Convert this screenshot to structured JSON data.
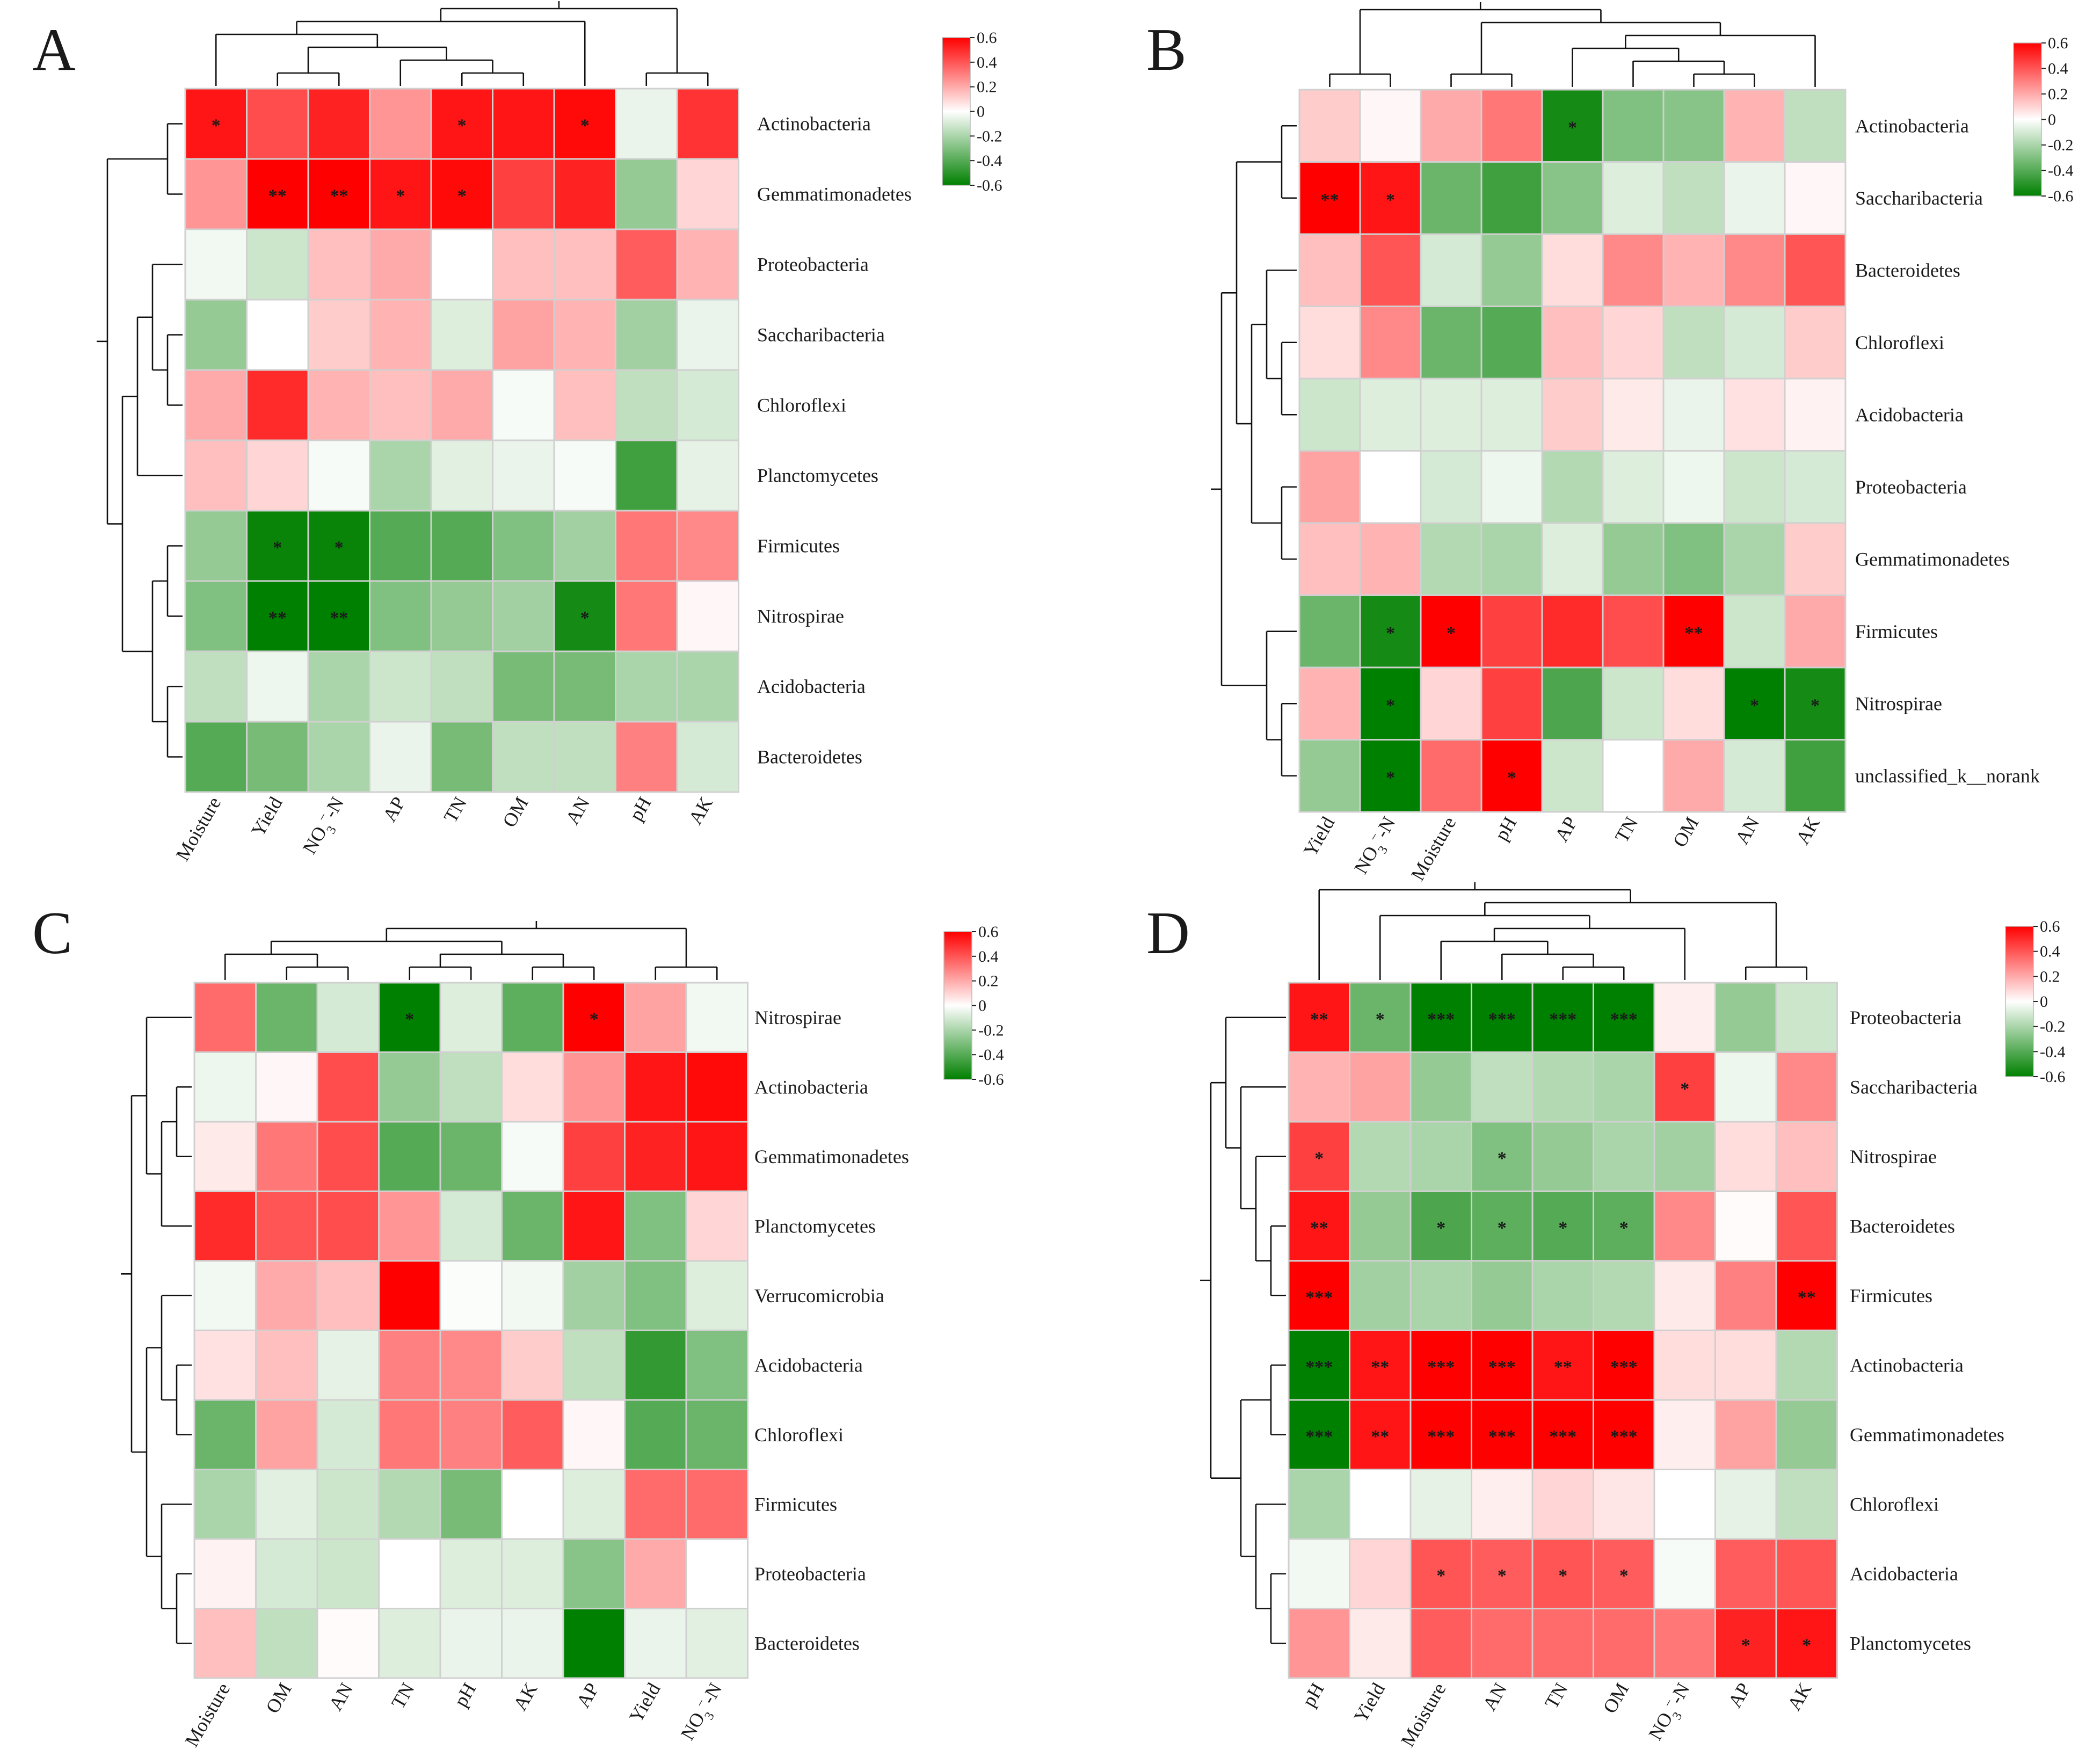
{
  "figure": {
    "color_scale": {
      "min": -0.6,
      "max": 0.6,
      "neg_color": "#008000",
      "mid_color": "#ffffff",
      "pos_color": "#ff0000",
      "ticks": [
        "0.6",
        "0.4",
        "0.2",
        "0",
        "-0.2",
        "-0.4",
        "-0.6"
      ]
    }
  },
  "chart_data": [
    {
      "type": "heatmap",
      "panel": "A",
      "rows": [
        "Actinobacteria",
        "Gemmatimonadetes",
        "Proteobacteria",
        "Saccharibacteria",
        "Chloroflexi",
        "Planctomycetes",
        "Firmicutes",
        "Nitrospirae",
        "Acidobacteria",
        "Bacteroidetes"
      ],
      "columns": [
        "Moisture",
        "Yield",
        "NO3-N",
        "AP",
        "TN",
        "OM",
        "AN",
        "pH",
        "AK"
      ],
      "values": [
        [
          0.55,
          0.42,
          0.52,
          0.25,
          0.55,
          0.55,
          0.58,
          -0.05,
          0.48
        ],
        [
          0.25,
          0.6,
          0.6,
          0.55,
          0.58,
          0.45,
          0.52,
          -0.25,
          0.1
        ],
        [
          -0.03,
          -0.12,
          0.15,
          0.2,
          0.0,
          0.15,
          0.15,
          0.38,
          0.18
        ],
        [
          -0.25,
          0.0,
          0.12,
          0.18,
          -0.08,
          0.22,
          0.18,
          -0.22,
          -0.05
        ],
        [
          0.2,
          0.5,
          0.18,
          0.15,
          0.2,
          -0.02,
          0.15,
          -0.15,
          -0.1
        ],
        [
          0.15,
          0.1,
          -0.02,
          -0.2,
          -0.07,
          -0.05,
          -0.02,
          -0.45,
          -0.06
        ],
        [
          -0.25,
          -0.58,
          -0.58,
          -0.4,
          -0.4,
          -0.3,
          -0.22,
          0.32,
          0.28
        ],
        [
          -0.3,
          -0.6,
          -0.6,
          -0.3,
          -0.25,
          -0.22,
          -0.55,
          0.32,
          0.02
        ],
        [
          -0.15,
          -0.04,
          -0.2,
          -0.12,
          -0.15,
          -0.32,
          -0.32,
          -0.2,
          -0.2
        ],
        [
          -0.4,
          -0.32,
          -0.2,
          -0.05,
          -0.32,
          -0.15,
          -0.15,
          0.3,
          -0.1
        ]
      ],
      "significance": [
        [
          "*",
          "",
          "",
          "",
          "*",
          "",
          "*",
          "",
          ""
        ],
        [
          "",
          "**",
          "**",
          "*",
          "*",
          "",
          "",
          "",
          ""
        ],
        [
          "",
          "",
          "",
          "",
          "",
          "",
          "",
          "",
          ""
        ],
        [
          "",
          "",
          "",
          "",
          "",
          "",
          "",
          "",
          ""
        ],
        [
          "",
          "",
          "",
          "",
          "",
          "",
          "",
          "",
          ""
        ],
        [
          "",
          "",
          "",
          "",
          "",
          "",
          "",
          "",
          ""
        ],
        [
          "",
          "*",
          "*",
          "",
          "",
          "",
          "",
          "",
          ""
        ],
        [
          "",
          "**",
          "**",
          "",
          "",
          "",
          "*",
          "",
          ""
        ],
        [
          "",
          "",
          "",
          "",
          "",
          "",
          "",
          "",
          ""
        ],
        [
          "",
          "",
          "",
          "",
          "",
          "",
          "",
          "",
          ""
        ]
      ]
    },
    {
      "type": "heatmap",
      "panel": "B",
      "rows": [
        "Actinobacteria",
        "Saccharibacteria",
        "Bacteroidetes",
        "Chloroflexi",
        "Acidobacteria",
        "Proteobacteria",
        "Gemmatimonadetes",
        "Firmicutes",
        "Nitrospirae",
        "unclassified_k__norank"
      ],
      "columns": [
        "Yield",
        "NO3-N",
        "Moisture",
        "pH",
        "AP",
        "TN",
        "OM",
        "AN",
        "AK"
      ],
      "values": [
        [
          0.12,
          0.02,
          0.2,
          0.32,
          -0.55,
          -0.3,
          -0.28,
          0.18,
          -0.15
        ],
        [
          0.65,
          0.55,
          -0.35,
          -0.45,
          -0.28,
          -0.08,
          -0.15,
          -0.05,
          0.02
        ],
        [
          0.15,
          0.4,
          -0.1,
          -0.25,
          0.08,
          0.28,
          0.18,
          0.28,
          0.4
        ],
        [
          0.08,
          0.28,
          -0.35,
          -0.4,
          0.15,
          0.1,
          -0.15,
          -0.1,
          0.12
        ],
        [
          -0.12,
          -0.08,
          -0.08,
          -0.08,
          0.12,
          0.05,
          -0.05,
          0.07,
          0.03
        ],
        [
          0.22,
          0.0,
          -0.1,
          -0.04,
          -0.18,
          -0.08,
          -0.04,
          -0.12,
          -0.1
        ],
        [
          0.15,
          0.18,
          -0.18,
          -0.2,
          -0.08,
          -0.25,
          -0.3,
          -0.2,
          0.12
        ],
        [
          -0.35,
          -0.55,
          0.6,
          0.45,
          0.5,
          0.42,
          0.6,
          -0.12,
          0.2
        ],
        [
          0.18,
          -0.6,
          0.1,
          0.45,
          -0.42,
          -0.12,
          0.08,
          -0.6,
          -0.55
        ],
        [
          -0.25,
          -0.6,
          0.35,
          0.6,
          -0.12,
          0.0,
          0.2,
          -0.1,
          -0.45
        ]
      ],
      "significance": [
        [
          "",
          "",
          "",
          "",
          "*",
          "",
          "",
          "",
          ""
        ],
        [
          "**",
          "*",
          "",
          "",
          "",
          "",
          "",
          "",
          ""
        ],
        [
          "",
          "",
          "",
          "",
          "",
          "",
          "",
          "",
          ""
        ],
        [
          "",
          "",
          "",
          "",
          "",
          "",
          "",
          "",
          ""
        ],
        [
          "",
          "",
          "",
          "",
          "",
          "",
          "",
          "",
          ""
        ],
        [
          "",
          "",
          "",
          "",
          "",
          "",
          "",
          "",
          ""
        ],
        [
          "",
          "",
          "",
          "",
          "",
          "",
          "",
          "",
          ""
        ],
        [
          "",
          "*",
          "*",
          "",
          "",
          "",
          "**",
          "",
          ""
        ],
        [
          "",
          "*",
          "",
          "",
          "",
          "",
          "",
          "*",
          "*"
        ],
        [
          "",
          "*",
          "",
          "*",
          "",
          "",
          "",
          "",
          ""
        ]
      ]
    },
    {
      "type": "heatmap",
      "panel": "C",
      "rows": [
        "Nitrospirae",
        "Actinobacteria",
        "Gemmatimonadetes",
        "Planctomycetes",
        "Verrucomicrobia",
        "Acidobacteria",
        "Chloroflexi",
        "Firmicutes",
        "Proteobacteria",
        "Bacteroidetes"
      ],
      "columns": [
        "Moisture",
        "OM",
        "AN",
        "TN",
        "pH",
        "AK",
        "AP",
        "Yield",
        "NO3-N"
      ],
      "values": [
        [
          0.35,
          -0.35,
          -0.1,
          -0.6,
          -0.08,
          -0.38,
          0.6,
          0.22,
          -0.03
        ],
        [
          -0.04,
          0.02,
          0.42,
          -0.25,
          -0.15,
          0.08,
          0.25,
          0.55,
          0.58
        ],
        [
          0.05,
          0.32,
          0.42,
          -0.4,
          -0.35,
          -0.02,
          0.45,
          0.52,
          0.55
        ],
        [
          0.5,
          0.4,
          0.42,
          0.25,
          -0.1,
          -0.35,
          0.55,
          -0.3,
          0.1
        ],
        [
          -0.03,
          0.2,
          0.15,
          0.6,
          -0.01,
          -0.03,
          -0.22,
          -0.3,
          -0.08
        ],
        [
          0.07,
          0.15,
          -0.06,
          0.3,
          0.28,
          0.12,
          -0.15,
          -0.48,
          -0.3
        ],
        [
          -0.35,
          0.22,
          -0.1,
          0.32,
          0.3,
          0.38,
          0.02,
          -0.4,
          -0.35
        ],
        [
          -0.2,
          -0.07,
          -0.12,
          -0.18,
          -0.32,
          0.0,
          -0.08,
          0.35,
          0.35
        ],
        [
          0.03,
          -0.1,
          -0.12,
          0.0,
          -0.08,
          -0.08,
          -0.28,
          0.2,
          0.0
        ],
        [
          0.15,
          -0.15,
          0.01,
          -0.08,
          -0.05,
          -0.05,
          -0.6,
          -0.05,
          -0.07
        ]
      ],
      "significance": [
        [
          "",
          "",
          "",
          "*",
          "",
          "",
          "*",
          "",
          ""
        ],
        [
          "",
          "",
          "",
          "",
          "",
          "",
          "",
          "",
          ""
        ],
        [
          "",
          "",
          "",
          "",
          "",
          "",
          "",
          "",
          ""
        ],
        [
          "",
          "",
          "",
          "",
          "",
          "",
          "",
          "",
          ""
        ],
        [
          "",
          "",
          "",
          "",
          "",
          "",
          "",
          "",
          ""
        ],
        [
          "",
          "",
          "",
          "",
          "",
          "",
          "",
          "",
          ""
        ],
        [
          "",
          "",
          "",
          "",
          "",
          "",
          "",
          "",
          ""
        ],
        [
          "",
          "",
          "",
          "",
          "",
          "",
          "",
          "",
          ""
        ],
        [
          "",
          "",
          "",
          "",
          "",
          "",
          "",
          "",
          ""
        ],
        [
          "",
          "",
          "",
          "",
          "",
          "",
          "",
          "",
          ""
        ]
      ]
    },
    {
      "type": "heatmap",
      "panel": "D",
      "rows": [
        "Proteobacteria",
        "Saccharibacteria",
        "Nitrospirae",
        "Bacteroidetes",
        "Firmicutes",
        "Actinobacteria",
        "Gemmatimonadetes",
        "Chloroflexi",
        "Acidobacteria",
        "Planctomycetes"
      ],
      "columns": [
        "pH",
        "Yield",
        "Moisture",
        "AN",
        "TN",
        "OM",
        "NO3-N",
        "AP",
        "AK"
      ],
      "values": [
        [
          0.55,
          -0.35,
          -0.6,
          -0.6,
          -0.6,
          -0.6,
          0.04,
          -0.25,
          -0.12
        ],
        [
          0.18,
          0.22,
          -0.25,
          -0.15,
          -0.18,
          -0.2,
          0.45,
          -0.04,
          0.28
        ],
        [
          0.45,
          -0.18,
          -0.2,
          -0.3,
          -0.25,
          -0.2,
          -0.22,
          0.08,
          0.15
        ],
        [
          0.55,
          -0.25,
          -0.42,
          -0.38,
          -0.4,
          -0.38,
          0.28,
          0.01,
          0.4
        ],
        [
          0.65,
          -0.22,
          -0.2,
          -0.25,
          -0.2,
          -0.18,
          0.05,
          0.3,
          0.6
        ],
        [
          -0.6,
          0.55,
          0.6,
          0.6,
          0.55,
          0.6,
          0.08,
          0.08,
          -0.18
        ],
        [
          -0.6,
          0.55,
          0.6,
          0.6,
          0.6,
          0.6,
          0.04,
          0.22,
          -0.25
        ],
        [
          -0.2,
          0.0,
          -0.06,
          0.04,
          0.1,
          0.06,
          0.0,
          -0.06,
          -0.15
        ],
        [
          -0.03,
          0.1,
          0.4,
          0.38,
          0.4,
          0.38,
          -0.02,
          0.38,
          0.4
        ],
        [
          0.25,
          0.05,
          0.38,
          0.35,
          0.35,
          0.35,
          0.32,
          0.52,
          0.55
        ]
      ],
      "significance": [
        [
          "**",
          "*",
          "***",
          "***",
          "***",
          "***",
          "",
          "",
          ""
        ],
        [
          "",
          "",
          "",
          "",
          "",
          "",
          "*",
          "",
          ""
        ],
        [
          "*",
          "",
          "",
          "*",
          "",
          "",
          "",
          "",
          ""
        ],
        [
          "**",
          "",
          "*",
          "*",
          "*",
          "*",
          "",
          "",
          ""
        ],
        [
          "***",
          "",
          "",
          "",
          "",
          "",
          "",
          "",
          "**"
        ],
        [
          "***",
          "**",
          "***",
          "***",
          "**",
          "***",
          "",
          "",
          ""
        ],
        [
          "***",
          "**",
          "***",
          "***",
          "***",
          "***",
          "",
          "",
          ""
        ],
        [
          "",
          "",
          "",
          "",
          "",
          "",
          "",
          "",
          ""
        ],
        [
          "",
          "",
          "*",
          "*",
          "*",
          "*",
          "",
          "",
          ""
        ],
        [
          "",
          "",
          "",
          "",
          "",
          "",
          "",
          "*",
          "*"
        ]
      ]
    }
  ]
}
